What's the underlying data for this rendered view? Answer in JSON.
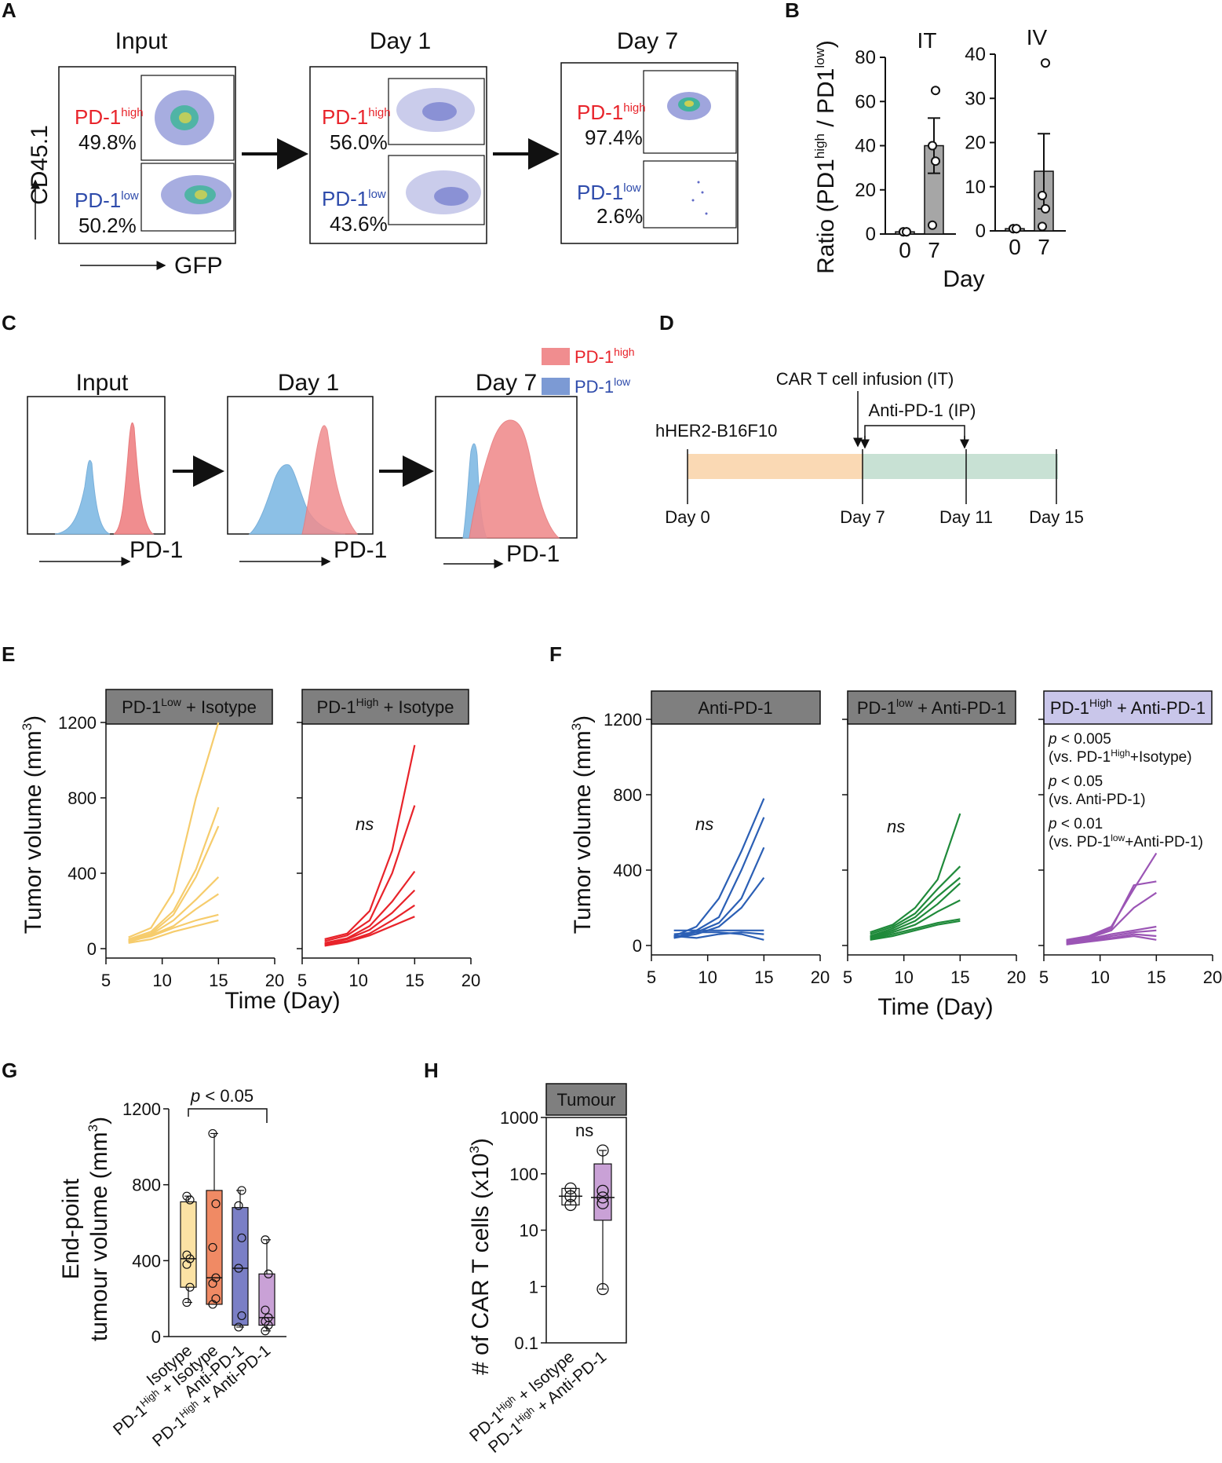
{
  "panels": {
    "A": {
      "letter": "A",
      "y_axis": "CD45.1",
      "x_axis": "GFP",
      "hi_base": "PD-1",
      "hi_sup": "high",
      "lo_base": "PD-1",
      "lo_sup": "low",
      "plots": [
        {
          "title": "Input",
          "high_pct": "49.8%",
          "low_pct": "50.2%"
        },
        {
          "title": "Day 1",
          "high_pct": "56.0%",
          "low_pct": "43.6%"
        },
        {
          "title": "Day 7",
          "high_pct": "97.4%",
          "low_pct": "2.6%"
        }
      ]
    },
    "B": {
      "letter": "B",
      "ylabel_base": "Ratio (PD1",
      "ylabel_sup1": "high",
      "ylabel_mid": " / PD1",
      "ylabel_sup2": "low",
      "ylabel_end": ")",
      "xlabel": "Day"
    },
    "C": {
      "letter": "C",
      "legend_high_base": "PD-1",
      "legend_high_sup": "high",
      "legend_low_base": "PD-1",
      "legend_low_sup": "low",
      "x_axis": "PD-1",
      "titles": [
        "Input",
        "Day 1",
        "Day 7"
      ]
    },
    "D": {
      "letter": "D",
      "infusion": "CAR T cell infusion (IT)",
      "anti": "Anti-PD-1 (IP)",
      "tumor": "hHER2-B16F10",
      "days": [
        "Day 0",
        "Day 7",
        "Day 11",
        "Day 15"
      ]
    },
    "E": {
      "letter": "E",
      "ylabel_base": "Tumor volume (mm",
      "ylabel_sup": "3",
      "ylabel_end": ")",
      "xlabel": "Time (Day)",
      "ns": "ns",
      "headers": [
        {
          "base": "PD-1",
          "sup": "Low",
          "rest": " + Isotype"
        },
        {
          "base": "PD-1",
          "sup": "High",
          "rest": " + Isotype"
        }
      ]
    },
    "F": {
      "letter": "F",
      "ylabel_base": "Tumor volume (mm",
      "ylabel_sup": "3",
      "ylabel_end": ")",
      "xlabel": "Time (Day)",
      "ns": "ns",
      "headers": [
        {
          "base": "Anti-PD-1",
          "sup": "",
          "rest": ""
        },
        {
          "base": "PD-1",
          "sup": "low",
          "rest": " + Anti-PD-1"
        },
        {
          "base": "PD-1",
          "sup": "High",
          "rest": " + Anti-PD-1"
        }
      ],
      "stats": [
        {
          "p": "p",
          "text": " < 0.005",
          "vs_a": "(vs. PD-1",
          "vs_sup": "High",
          "vs_b": "+Isotype)"
        },
        {
          "p": "p",
          "text": " < 0.05",
          "vs_a": "(vs. Anti-PD-1)",
          "vs_sup": "",
          "vs_b": ""
        },
        {
          "p": "p",
          "text": " < 0.01",
          "vs_a": "(vs. PD-1",
          "vs_sup": "low",
          "vs_b": "+Anti-PD-1)"
        }
      ]
    },
    "G": {
      "letter": "G",
      "ylabel1": "End-point",
      "ylabel2_base": "tumour volume (mm",
      "ylabel2_sup": "3",
      "ylabel2_end": ")",
      "pval_p": "p",
      "pval_rest": " < 0.05",
      "xlabels": [
        {
          "base": "Isotype",
          "sup": "",
          "rest": ""
        },
        {
          "base": "PD-1",
          "sup": "High",
          "rest": " + Isotype"
        },
        {
          "base": "Anti-PD-1",
          "sup": "",
          "rest": ""
        },
        {
          "base": "PD-1",
          "sup": "High",
          "rest": " + Anti-PD-1"
        }
      ]
    },
    "H": {
      "letter": "H",
      "header": "Tumour",
      "ylabel_base": "# of CAR T cells (x10",
      "ylabel_sup": "3",
      "ylabel_end": ")",
      "ns": "ns",
      "xlabels": [
        {
          "base": "PD-1",
          "sup": "High",
          "rest": " + Isotype"
        },
        {
          "base": "PD-1",
          "sup": "High",
          "rest": " + Anti-PD-1"
        }
      ]
    }
  },
  "colors": {
    "high": "#e8242b",
    "low": "#2e4bab",
    "hist_high": "#f08d8f",
    "hist_low": "#8cc0e6",
    "yellow": "#f6cc6c",
    "red": "#e8232a",
    "blue": "#2b5fb5",
    "green": "#1f8a3a",
    "purple": "#9b55b5",
    "gray_header": "#7f7f7f",
    "lav_header": "#c9c6ea",
    "box_yellow": "#fbe2a4",
    "box_orange": "#f08a64",
    "box_blue": "#7a7fc6",
    "box_purple": "#c9a1d6",
    "timeline_orange": "#fad9b4",
    "timeline_green": "#c8e1d4"
  },
  "chart_data": [
    {
      "id": "B-IT",
      "type": "bar",
      "title": "IT",
      "categories": [
        "0",
        "7"
      ],
      "means": [
        1,
        40
      ],
      "sem": [
        0,
        12.5
      ],
      "points": [
        [
          1,
          1,
          1,
          1
        ],
        [
          4,
          33,
          40,
          65
        ]
      ],
      "ylim": [
        0,
        80
      ],
      "yticks": [
        0,
        20,
        40,
        60,
        80
      ],
      "xlabel": "Day",
      "ylabel": "Ratio (PD1high / PD1low)"
    },
    {
      "id": "B-IV",
      "type": "bar",
      "title": "IV",
      "categories": [
        "0",
        "7"
      ],
      "means": [
        0.5,
        13.5
      ],
      "sem": [
        0,
        8.5
      ],
      "points": [
        [
          0.5,
          0.5,
          0.5,
          0.5
        ],
        [
          1,
          5,
          8,
          38
        ]
      ],
      "ylim": [
        0,
        40
      ],
      "yticks": [
        0,
        10,
        20,
        30,
        40
      ],
      "xlabel": "Day"
    },
    {
      "id": "E1",
      "type": "line",
      "title": "PD-1Low + Isotype",
      "color_key": "yellow",
      "x": [
        7,
        9,
        11,
        13,
        15
      ],
      "xlim": [
        5,
        20
      ],
      "ylim": [
        0,
        1200
      ],
      "xticks": [
        5,
        10,
        15,
        20
      ],
      "yticks": [
        0,
        400,
        800,
        1200
      ],
      "series": [
        {
          "values": [
            60,
            110,
            300,
            800,
            1200
          ]
        },
        {
          "values": [
            50,
            90,
            200,
            420,
            750
          ]
        },
        {
          "values": [
            45,
            80,
            180,
            380,
            650
          ]
        },
        {
          "values": [
            40,
            75,
            150,
            260,
            380
          ]
        },
        {
          "values": [
            35,
            70,
            120,
            210,
            290
          ]
        },
        {
          "values": [
            40,
            65,
            110,
            150,
            180
          ]
        },
        {
          "values": [
            30,
            50,
            90,
            120,
            150
          ]
        }
      ]
    },
    {
      "id": "E2",
      "type": "line",
      "title": "PD-1High + Isotype",
      "color_key": "red",
      "x": [
        7,
        9,
        11,
        13,
        15
      ],
      "xlim": [
        5,
        20
      ],
      "ylim": [
        0,
        1200
      ],
      "xticks": [
        5,
        10,
        15,
        20
      ],
      "ns": true,
      "series": [
        {
          "values": [
            50,
            80,
            200,
            520,
            1080
          ]
        },
        {
          "values": [
            40,
            70,
            150,
            400,
            760
          ]
        },
        {
          "values": [
            30,
            55,
            120,
            250,
            410
          ]
        },
        {
          "values": [
            25,
            50,
            100,
            190,
            310
          ]
        },
        {
          "values": [
            20,
            40,
            80,
            150,
            230
          ]
        },
        {
          "values": [
            15,
            35,
            70,
            120,
            170
          ]
        }
      ]
    },
    {
      "id": "F1",
      "type": "line",
      "title": "Anti-PD-1",
      "color_key": "blue",
      "x": [
        7,
        9,
        11,
        13,
        15
      ],
      "xlim": [
        5,
        20
      ],
      "ylim": [
        0,
        1200
      ],
      "xticks": [
        5,
        10,
        15,
        20
      ],
      "yticks": [
        0,
        400,
        800,
        1200
      ],
      "ns": true,
      "series": [
        {
          "values": [
            50,
            100,
            250,
            500,
            780
          ]
        },
        {
          "values": [
            40,
            80,
            150,
            400,
            680
          ]
        },
        {
          "values": [
            45,
            70,
            120,
            250,
            520
          ]
        },
        {
          "values": [
            40,
            60,
            100,
            200,
            360
          ]
        },
        {
          "values": [
            80,
            80,
            80,
            80,
            80
          ]
        },
        {
          "values": [
            60,
            70,
            70,
            60,
            30
          ]
        },
        {
          "values": [
            50,
            40,
            60,
            70,
            60
          ]
        }
      ]
    },
    {
      "id": "F2",
      "type": "line",
      "title": "PD-1low + Anti-PD-1",
      "color_key": "green",
      "x": [
        7,
        9,
        11,
        13,
        15
      ],
      "xlim": [
        5,
        20
      ],
      "ylim": [
        0,
        1200
      ],
      "xticks": [
        5,
        10,
        15,
        20
      ],
      "ns": true,
      "series": [
        {
          "values": [
            70,
            110,
            200,
            350,
            700
          ]
        },
        {
          "values": [
            60,
            100,
            170,
            300,
            420
          ]
        },
        {
          "values": [
            50,
            90,
            150,
            260,
            360
          ]
        },
        {
          "values": [
            45,
            80,
            130,
            220,
            330
          ]
        },
        {
          "values": [
            40,
            70,
            110,
            180,
            240
          ]
        },
        {
          "values": [
            35,
            60,
            90,
            120,
            140
          ]
        },
        {
          "values": [
            30,
            50,
            80,
            110,
            130
          ]
        }
      ]
    },
    {
      "id": "F3",
      "type": "line",
      "title": "PD-1High + Anti-PD-1",
      "color_key": "purple",
      "x": [
        7,
        9,
        11,
        13,
        15
      ],
      "xlim": [
        5,
        20
      ],
      "ylim": [
        0,
        1200
      ],
      "xticks": [
        5,
        10,
        15,
        20
      ],
      "series": [
        {
          "values": [
            30,
            50,
            100,
            300,
            490
          ]
        },
        {
          "values": [
            25,
            45,
            90,
            320,
            340
          ]
        },
        {
          "values": [
            20,
            40,
            80,
            200,
            280
          ]
        },
        {
          "values": [
            20,
            35,
            60,
            80,
            100
          ]
        },
        {
          "values": [
            15,
            30,
            50,
            70,
            80
          ]
        },
        {
          "values": [
            10,
            25,
            40,
            60,
            50
          ]
        },
        {
          "values": [
            5,
            20,
            35,
            50,
            30
          ]
        }
      ]
    },
    {
      "id": "G",
      "type": "box",
      "ylim": [
        0,
        1200
      ],
      "yticks": [
        0,
        400,
        800,
        1200
      ],
      "categories": [
        "Isotype",
        "PD-1High + Isotype",
        "Anti-PD-1",
        "PD-1High + Anti-PD-1"
      ],
      "boxes": [
        {
          "min": 180,
          "q1": 260,
          "median": 410,
          "q3": 710,
          "max": 740,
          "points": [
            180,
            260,
            380,
            410,
            430,
            720,
            740
          ],
          "fill": "box_yellow"
        },
        {
          "min": 170,
          "q1": 170,
          "median": 310,
          "q3": 770,
          "max": 1070,
          "points": [
            170,
            200,
            280,
            310,
            470,
            700,
            1070
          ],
          "fill": "box_orange"
        },
        {
          "min": 50,
          "q1": 60,
          "median": 360,
          "q3": 680,
          "max": 770,
          "points": [
            50,
            110,
            360,
            520,
            690,
            770
          ],
          "fill": "box_blue"
        },
        {
          "min": 30,
          "q1": 60,
          "median": 100,
          "q3": 330,
          "max": 510,
          "points": [
            30,
            60,
            80,
            100,
            140,
            330,
            510
          ],
          "fill": "box_purple"
        }
      ],
      "pval": "p < 0.05"
    },
    {
      "id": "H",
      "type": "box",
      "yscale": "log",
      "ylim": [
        0.1,
        1000
      ],
      "yticks": [
        0.1,
        1,
        10,
        100,
        1000
      ],
      "ytick_labels": [
        "0.1",
        "1",
        "10",
        "100",
        "1000"
      ],
      "categories": [
        "PD-1High + Isotype",
        "PD-1High + Anti-PD-1"
      ],
      "boxes": [
        {
          "min": 28,
          "q1": 28,
          "median": 40,
          "q3": 55,
          "max": 55,
          "points": [
            28,
            40,
            55
          ],
          "fill": "none"
        },
        {
          "min": 0.9,
          "q1": 15,
          "median": 38,
          "q3": 150,
          "max": 260,
          "points": [
            0.9,
            30,
            38,
            50,
            260
          ],
          "fill": "box_purple"
        }
      ],
      "annotation": "ns"
    }
  ]
}
